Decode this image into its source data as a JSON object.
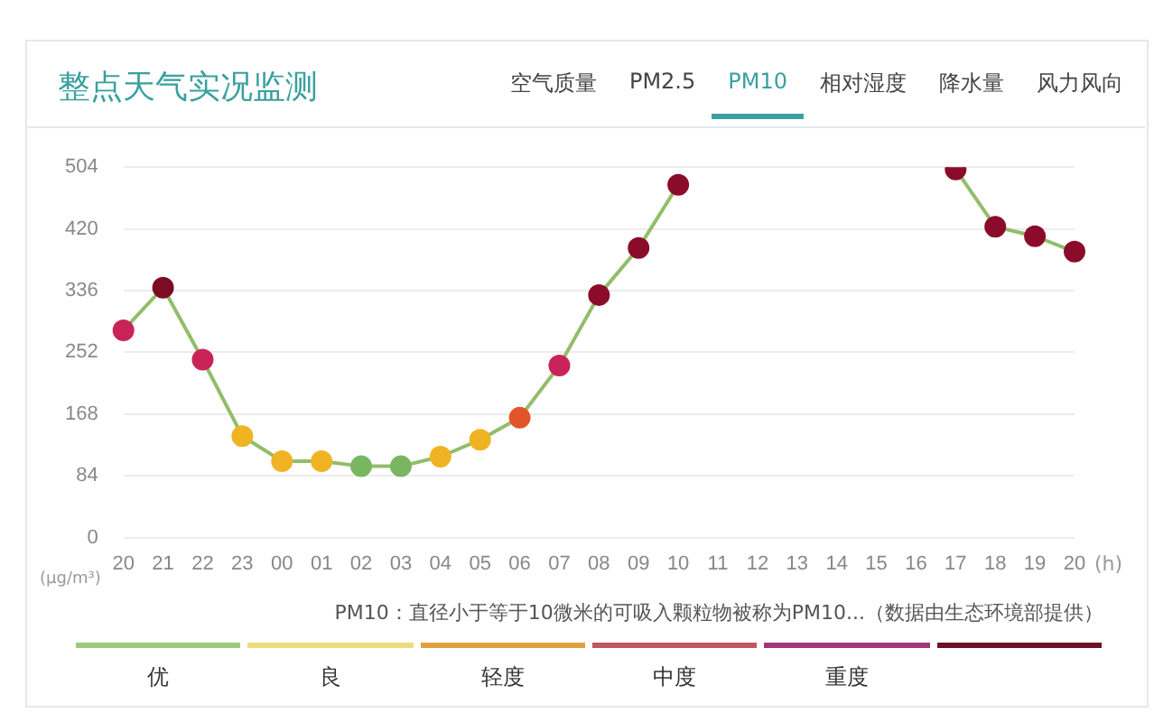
{
  "chart_data": {
    "type": "line",
    "title": "整点天气实况监测",
    "xlabel": "(h)",
    "ylabel": "(μg/m³)",
    "categories": [
      "20",
      "21",
      "22",
      "23",
      "00",
      "01",
      "02",
      "03",
      "04",
      "05",
      "06",
      "07",
      "08",
      "09",
      "10",
      "11",
      "12",
      "13",
      "14",
      "15",
      "16",
      "17",
      "18",
      "19",
      "20"
    ],
    "series": [
      {
        "color": "#92bd6a",
        "values": [
          282,
          340,
          242,
          138,
          104,
          104,
          97,
          97,
          110,
          133,
          163,
          234,
          330,
          394,
          480,
          null,
          null,
          null,
          null,
          null,
          null,
          501,
          423,
          410,
          389
        ],
        "colors": [
          "#c8245a",
          "#7b0c24",
          "#c8245a",
          "#f0b323",
          "#f0b323",
          "#f0b323",
          "#7ab661",
          "#7ab661",
          "#f0b323",
          "#f0b323",
          "#e2552a",
          "#c8245a",
          "#8b0c2a",
          "#8b0c2a",
          "#8b0c2a",
          null,
          null,
          null,
          null,
          null,
          null,
          "#8b0c2a",
          "#8b0c2a",
          "#8b0c2a",
          "#8b0c2a"
        ]
      }
    ],
    "ylim": [
      0,
      504
    ],
    "yticks": [
      0,
      84,
      168,
      252,
      336,
      420,
      504
    ],
    "grid": "y",
    "legend": false,
    "marker": "circle",
    "line_style": "solid",
    "annotations": [
      "空气质量",
      "PM2.5",
      "PM10",
      "相对湿度",
      "降水量",
      "风力风向",
      "PM10：直径小于等于10微米的可吸入颗粒物被称为PM10...（数据由生态环境部提供）",
      "优",
      "良",
      "轻度",
      "中度",
      "重度"
    ]
  }
}
